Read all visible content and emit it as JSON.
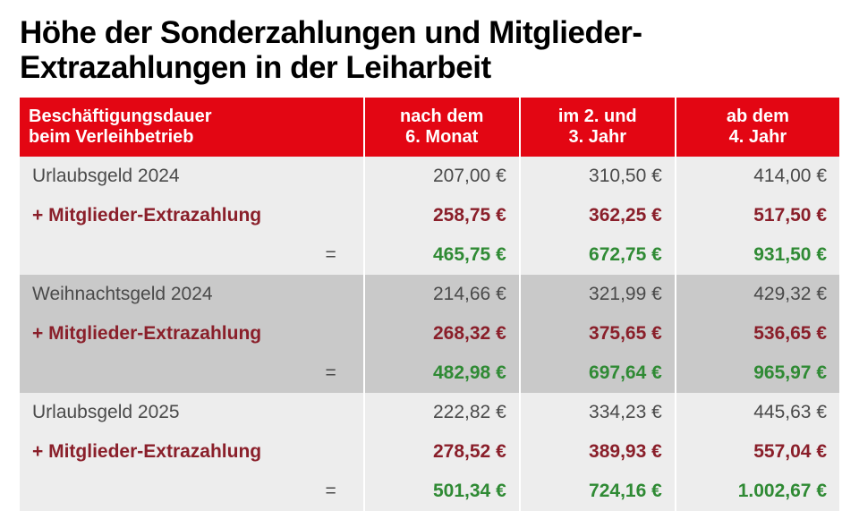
{
  "title_line1": "Höhe der Sonderzahlungen und Mitglieder-",
  "title_line2": "Extrazahlungen in der Leiharbeit",
  "header": {
    "col0_line1": "Beschäftigungsdauer",
    "col0_line2": "beim Verleihbetrieb",
    "col1_line1": "nach dem",
    "col1_line2": "6. Monat",
    "col2_line1": "im 2. und",
    "col2_line2": "3. Jahr",
    "col3_line1": "ab dem",
    "col3_line2": "4. Jahr"
  },
  "labels": {
    "extra": "+ Mitglieder-Extrazahlung",
    "eq": "="
  },
  "colors": {
    "header_bg": "#e30613",
    "header_fg": "#ffffff",
    "row_alt_a": "#ededed",
    "row_alt_b": "#c9c9c9",
    "text_base": "#4a4a4a",
    "text_extra": "#8a1f2a",
    "text_sum": "#2f8a34"
  },
  "groups": [
    {
      "bg": "a",
      "base_label": "Urlaubsgeld 2024",
      "base": [
        "207,00 €",
        "310,50 €",
        "414,00 €"
      ],
      "extra": [
        "258,75 €",
        "362,25 €",
        "517,50 €"
      ],
      "sum": [
        "465,75 €",
        "672,75 €",
        "931,50 €"
      ]
    },
    {
      "bg": "b",
      "base_label": "Weihnachtsgeld 2024",
      "base": [
        "214,66 €",
        "321,99 €",
        "429,32 €"
      ],
      "extra": [
        "268,32 €",
        "375,65 €",
        "536,65 €"
      ],
      "sum": [
        "482,98 €",
        "697,64 €",
        "965,97 €"
      ]
    },
    {
      "bg": "a",
      "base_label": "Urlaubsgeld 2025",
      "base": [
        "222,82 €",
        "334,23 €",
        "445,63 €"
      ],
      "extra": [
        "278,52 €",
        "389,93 €",
        "557,04 €"
      ],
      "sum": [
        "501,34 €",
        "724,16 €",
        "1.002,67 €"
      ]
    }
  ]
}
